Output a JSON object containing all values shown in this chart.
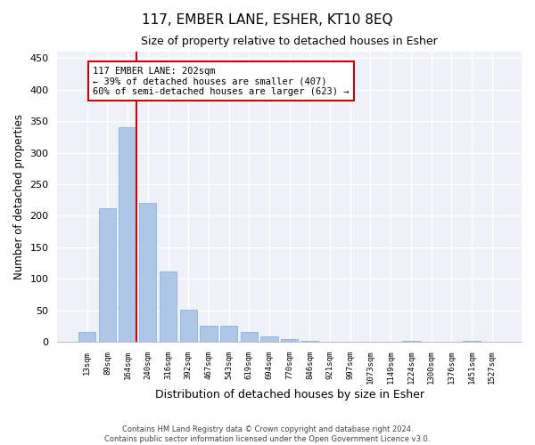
{
  "title": "117, EMBER LANE, ESHER, KT10 8EQ",
  "subtitle": "Size of property relative to detached houses in Esher",
  "xlabel": "Distribution of detached houses by size in Esher",
  "ylabel": "Number of detached properties",
  "categories": [
    "13sqm",
    "89sqm",
    "164sqm",
    "240sqm",
    "316sqm",
    "392sqm",
    "467sqm",
    "543sqm",
    "619sqm",
    "694sqm",
    "770sqm",
    "846sqm",
    "921sqm",
    "997sqm",
    "1073sqm",
    "1149sqm",
    "1224sqm",
    "1300sqm",
    "1376sqm",
    "1451sqm",
    "1527sqm"
  ],
  "values": [
    15,
    212,
    340,
    220,
    112,
    51,
    26,
    25,
    16,
    8,
    5,
    1,
    0,
    0,
    0,
    0,
    1,
    0,
    0,
    1,
    0
  ],
  "bar_color": "#aec6e8",
  "bar_edge_color": "#7aadd4",
  "annotation_title": "117 EMBER LANE: 202sqm",
  "annotation_line1": "← 39% of detached houses are smaller (407)",
  "annotation_line2": "60% of semi-detached houses are larger (623) →",
  "annotation_box_color": "#cc0000",
  "background_color": "#eef2f8",
  "ylim": [
    0,
    460
  ],
  "yticks": [
    0,
    50,
    100,
    150,
    200,
    250,
    300,
    350,
    400,
    450
  ],
  "footer_line1": "Contains HM Land Registry data © Crown copyright and database right 2024.",
  "footer_line2": "Contains public sector information licensed under the Open Government Licence v3.0."
}
